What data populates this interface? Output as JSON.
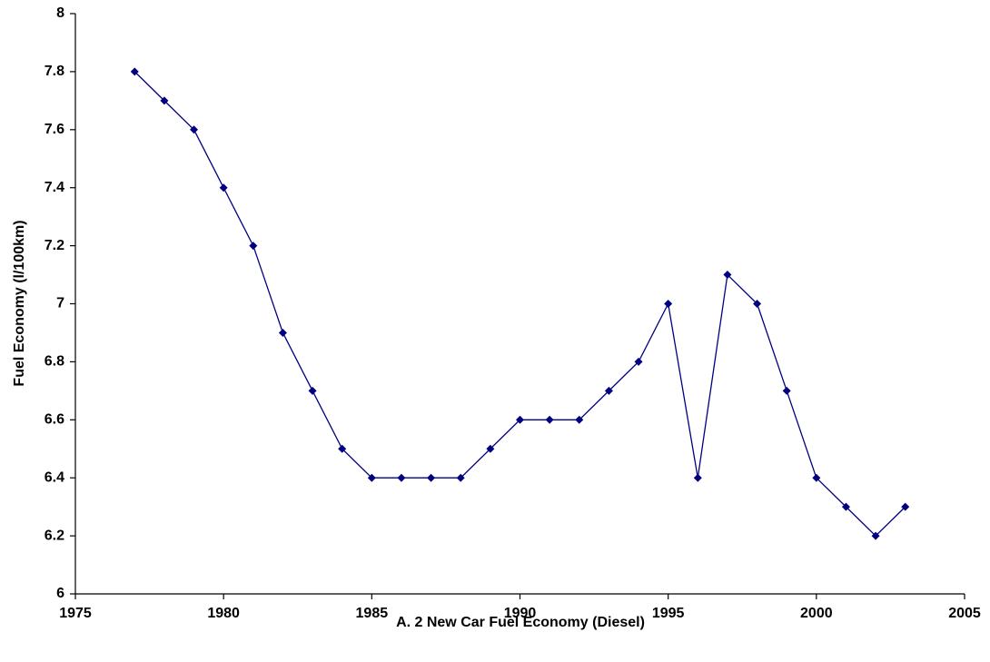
{
  "chart_data": {
    "type": "line",
    "xlabel": "A. 2 New Car Fuel Economy (Diesel)",
    "ylabel": "Fuel Economy (l/100km)",
    "x": [
      1977,
      1978,
      1979,
      1980,
      1981,
      1982,
      1983,
      1984,
      1985,
      1986,
      1987,
      1988,
      1989,
      1990,
      1991,
      1992,
      1993,
      1994,
      1995,
      1996,
      1997,
      1998,
      1999,
      2000,
      2001,
      2002,
      2003
    ],
    "values": [
      7.8,
      7.7,
      7.6,
      7.4,
      7.2,
      6.9,
      6.7,
      6.5,
      6.4,
      6.4,
      6.4,
      6.4,
      6.5,
      6.6,
      6.6,
      6.6,
      6.7,
      6.8,
      7.0,
      6.4,
      7.1,
      7.0,
      6.7,
      6.4,
      6.3,
      6.2,
      6.3
    ],
    "color": "#000080",
    "xlim": [
      1975,
      2005
    ],
    "xticks": [
      1975,
      1980,
      1985,
      1990,
      1995,
      2000,
      2005
    ],
    "ylim": [
      6,
      8
    ],
    "yticks": [
      6,
      6.2,
      6.4,
      6.6,
      6.8,
      7,
      7.2,
      7.4,
      7.6,
      7.8,
      8
    ],
    "grid": false
  }
}
